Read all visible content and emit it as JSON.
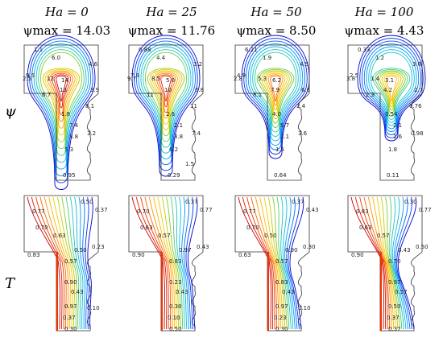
{
  "columns": [
    {
      "ha": "Ha = 0",
      "psi_max": "ψmax = 14.03"
    },
    {
      "ha": "Ha = 25",
      "psi_max": "ψmax = 11.76"
    },
    {
      "ha": "Ha = 50",
      "psi_max": "ψmax = 8.50"
    },
    {
      "ha": "Ha = 100",
      "psi_max": "ψmax = 4.43"
    }
  ],
  "row_labels": {
    "psi": "ψ",
    "T": "T"
  },
  "psi_labels": [
    [
      "1.1",
      "6.0",
      "9.5",
      "12",
      "14",
      "13",
      "6.7",
      "2.5",
      "4.6",
      "3.9",
      "8.1",
      "1.8",
      "7.4",
      "8.8",
      "5.3",
      "3.2",
      "0.95"
    ],
    [
      "0.88",
      "4.4",
      "7.9",
      "8.5",
      "5.0",
      "10",
      "11",
      "9.7",
      "3.2",
      "6.8",
      "11",
      "2.6",
      "2.1",
      "3.8",
      "6.2",
      "7.4",
      "0.29",
      "1.5"
    ],
    [
      "6.21",
      "1.9",
      "4.9",
      "5.3",
      "6.2",
      "7.9",
      "8.1",
      "2.8",
      "4.5",
      "6.6",
      "2.4",
      "4.0",
      "5.7",
      "1.1",
      "1.5",
      "3.6",
      "0.64"
    ],
    [
      "0.33",
      "1.2",
      "2.5",
      "1.4",
      "3.1",
      "4.2",
      "2.3",
      "3.8",
      "3.6",
      "2.7",
      "0.76",
      "0.54",
      "2.1",
      "1.6",
      "1.8",
      "0.98",
      "0.11"
    ]
  ],
  "t_labels": [
    [
      "0.50",
      "0.37",
      "0.77",
      "0.70",
      "0.63",
      "0.23",
      "0.83",
      "0.57",
      "0.50",
      "0.90",
      "0.43",
      "0.97",
      "0.37",
      "0.30",
      "0.10"
    ],
    [
      "0.37",
      "0.77",
      "0.70",
      "0.63",
      "0.57",
      "0.43",
      "0.90",
      "0.83",
      "0.97",
      "0.23",
      "0.43",
      "0.30",
      "0.10",
      "0.50"
    ],
    [
      "0.37",
      "0.43",
      "0.77",
      "0.70",
      "0.50",
      "0.30",
      "0.63",
      "0.57",
      "0.90",
      "0.83",
      "0.43",
      "0.97",
      "0.23",
      "0.30",
      "0.10"
    ],
    [
      "0.30",
      "0.77",
      "0.83",
      "0.63",
      "0.57",
      "0.50",
      "0.90",
      "0.70",
      "0.43",
      "0.97",
      "0.57",
      "0.50",
      "0.37",
      "0.37"
    ]
  ],
  "colors": {
    "ramp": [
      "#0000cc",
      "#0066ff",
      "#00bbee",
      "#33cc99",
      "#aacc00",
      "#ffcc00",
      "#ff8800",
      "#ee3300",
      "#cc0000"
    ]
  }
}
